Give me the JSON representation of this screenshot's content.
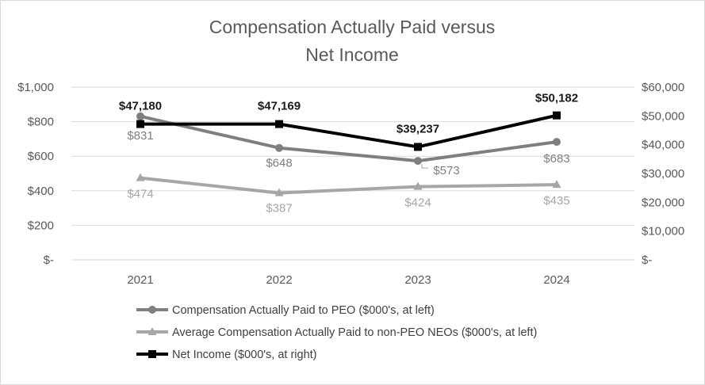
{
  "chart_data": {
    "type": "line",
    "title_lines": [
      "Compensation Actually Paid versus",
      "Net Income"
    ],
    "categories": [
      "2021",
      "2022",
      "2023",
      "2024"
    ],
    "left_axis": {
      "range": [
        0,
        1000
      ],
      "ticks": [
        1000,
        800,
        600,
        400,
        200,
        0
      ],
      "tick_labels": [
        "$1,000",
        "$800",
        "$600",
        "$400",
        "$200",
        "$-"
      ]
    },
    "right_axis": {
      "range": [
        0,
        60000
      ],
      "ticks": [
        60000,
        50000,
        40000,
        30000,
        20000,
        10000,
        0
      ],
      "tick_labels": [
        "$60,000",
        "$50,000",
        "$40,000",
        "$30,000",
        "$20,000",
        "$10,000",
        "$-"
      ]
    },
    "gridlines": true,
    "legend_position": "bottom",
    "series": [
      {
        "name": "Compensation Actually Paid to PEO ($000's, at left)",
        "axis": "left",
        "marker": "circle",
        "color": "#7f7f7f",
        "values": [
          831,
          648,
          573,
          683
        ],
        "labels": [
          "$831",
          "$648",
          "$573",
          "$683"
        ]
      },
      {
        "name": "Average Compensation Actually Paid to non-PEO NEOs ($000's, at left)",
        "axis": "left",
        "marker": "triangle",
        "color": "#a6a6a6",
        "values": [
          474,
          387,
          424,
          435
        ],
        "labels": [
          "$474",
          "$387",
          "$424",
          "$435"
        ]
      },
      {
        "name": "Net Income ($000's, at right)",
        "axis": "right",
        "marker": "square",
        "color": "#000000",
        "values": [
          47180,
          47169,
          39237,
          50182
        ],
        "labels": [
          "$47,180",
          "$47,169",
          "$39,237",
          "$50,182"
        ]
      }
    ]
  }
}
